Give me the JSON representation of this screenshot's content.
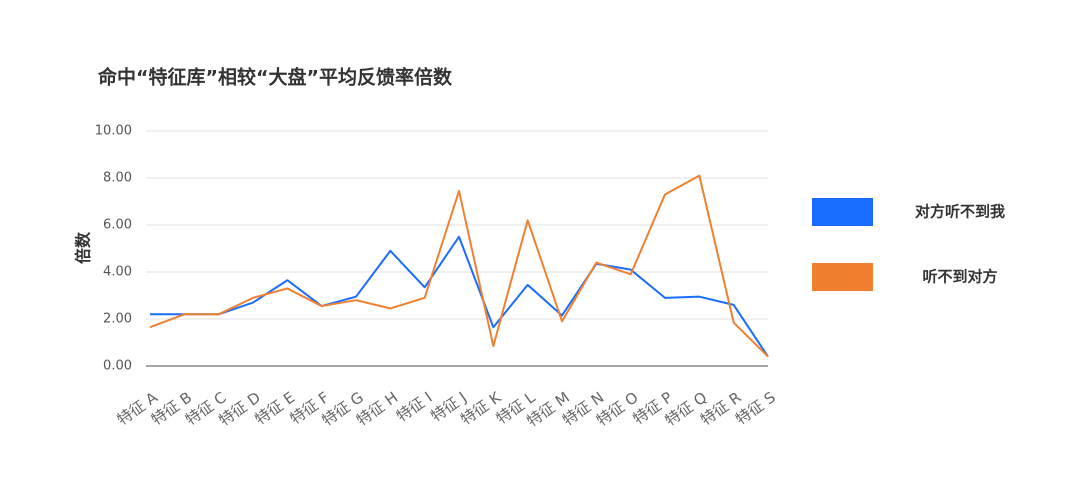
{
  "chart_data": {
    "type": "line",
    "title": "命中“特征库”相较“大盘”平均反馈率倍数",
    "y_label": "倍数",
    "categories": [
      "特征 A",
      "特征 B",
      "特征 C",
      "特征 D",
      "特征 E",
      "特征 F",
      "特征 G",
      "特征 H",
      "特征 I",
      "特征 J",
      "特征 K",
      "特征 L",
      "特征 M",
      "特征 N",
      "特征 O",
      "特征 P",
      "特征 Q",
      "特征 R",
      "特征 S"
    ],
    "series": [
      {
        "name": "对方听不到我",
        "color": "#1a6dff",
        "values": [
          2.2,
          2.2,
          2.2,
          2.7,
          3.65,
          2.55,
          2.95,
          4.9,
          3.35,
          5.5,
          1.65,
          3.45,
          2.15,
          4.35,
          4.1,
          2.9,
          2.95,
          2.6,
          0.4
        ]
      },
      {
        "name": "听不到对方",
        "color": "#f08030",
        "values": [
          1.65,
          2.2,
          2.2,
          2.9,
          3.3,
          2.55,
          2.8,
          2.45,
          2.9,
          7.45,
          0.85,
          6.2,
          1.9,
          4.4,
          3.9,
          7.3,
          8.1,
          1.85,
          0.4
        ]
      }
    ],
    "ylim": [
      0,
      10
    ],
    "yticks": [
      {
        "value": 0,
        "label": "0.00"
      },
      {
        "value": 2,
        "label": "2.00"
      },
      {
        "value": 4,
        "label": "4.00"
      },
      {
        "value": 6,
        "label": "6.00"
      },
      {
        "value": 8,
        "label": "8.00"
      },
      {
        "value": 10,
        "label": "10.00"
      }
    ],
    "grid": true,
    "legend": "right"
  }
}
